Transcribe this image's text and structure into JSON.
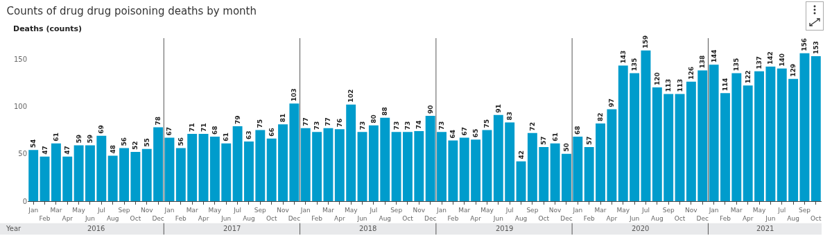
{
  "chart_data": {
    "type": "bar",
    "title": "Counts of drug drug poisoning deaths by month",
    "ylabel": "Deaths (counts)",
    "categories": [
      "Jan",
      "Feb",
      "Mar",
      "Apr",
      "May",
      "Jun",
      "Jul",
      "Aug",
      "Sep",
      "Oct",
      "Nov",
      "Dec",
      "Jan",
      "Feb",
      "Mar",
      "Apr",
      "May",
      "Jun",
      "Jul",
      "Aug",
      "Sep",
      "Oct",
      "Nov",
      "Dec",
      "Jan",
      "Feb",
      "Mar",
      "Apr",
      "May",
      "Jun",
      "Jul",
      "Aug",
      "Sep",
      "Oct",
      "Nov",
      "Dec",
      "Jan",
      "Feb",
      "Mar",
      "Apr",
      "May",
      "Jun",
      "Jul",
      "Aug",
      "Sep",
      "Oct",
      "Nov",
      "Dec",
      "Jan",
      "Feb",
      "Mar",
      "Apr",
      "May",
      "Jun",
      "Jul",
      "Aug",
      "Sep",
      "Oct",
      "Nov",
      "Dec",
      "Jan",
      "Feb",
      "Mar",
      "Apr",
      "May",
      "Jun",
      "Jul",
      "Aug",
      "Sep",
      "Oct"
    ],
    "values": [
      54,
      47,
      61,
      47,
      59,
      59,
      69,
      48,
      56,
      52,
      55,
      78,
      67,
      56,
      71,
      71,
      68,
      61,
      79,
      63,
      75,
      66,
      81,
      103,
      77,
      73,
      77,
      76,
      102,
      73,
      80,
      88,
      73,
      73,
      74,
      90,
      73,
      64,
      67,
      65,
      75,
      91,
      83,
      42,
      72,
      57,
      61,
      50,
      68,
      57,
      82,
      97,
      143,
      135,
      159,
      120,
      113,
      113,
      126,
      138,
      144,
      114,
      135,
      122,
      137,
      142,
      140,
      129,
      156,
      153
    ],
    "color": "#009ccc",
    "ylim": [
      0,
      172
    ],
    "yticks": [
      0,
      50,
      100,
      150
    ],
    "data_labels": true,
    "grid": false,
    "annotations": [
      "Year",
      "2016",
      "2017",
      "2018",
      "2019",
      "2020",
      "2021"
    ]
  }
}
